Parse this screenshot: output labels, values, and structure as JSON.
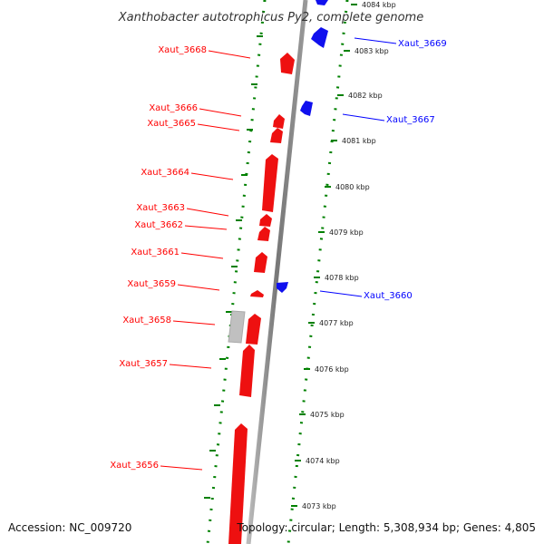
{
  "title": "Xanthobacter autotrophicus Py2, complete genome",
  "footer": {
    "accession": "Accession: NC_009720",
    "info": "Topology: circular; Length: 5,308,934 bp; Genes: 4,805"
  },
  "colors": {
    "forward": "#ff0000",
    "reverse": "#0000ff",
    "other": "#bbbbbb",
    "ticks": "#008000",
    "backbone": "#888888"
  },
  "ruler": {
    "unit": "kbp",
    "labels": [
      "4084 kbp",
      "4083 kbp",
      "4082 kbp",
      "4081 kbp",
      "4080 kbp",
      "4079 kbp",
      "4078 kbp",
      "4077 kbp",
      "4076 kbp",
      "4075 kbp",
      "4074 kbp",
      "4073 kbp"
    ]
  },
  "genes": [
    {
      "name": "Xaut_3668",
      "strand": "forward"
    },
    {
      "name": "Xaut_3669",
      "strand": "reverse"
    },
    {
      "name": "Xaut_3666",
      "strand": "forward"
    },
    {
      "name": "Xaut_3665",
      "strand": "forward"
    },
    {
      "name": "Xaut_3667",
      "strand": "reverse"
    },
    {
      "name": "Xaut_3664",
      "strand": "forward"
    },
    {
      "name": "Xaut_3663",
      "strand": "forward"
    },
    {
      "name": "Xaut_3662",
      "strand": "forward"
    },
    {
      "name": "Xaut_3661",
      "strand": "forward"
    },
    {
      "name": "Xaut_3659",
      "strand": "forward"
    },
    {
      "name": "Xaut_3660",
      "strand": "reverse"
    },
    {
      "name": "Xaut_3658",
      "strand": "forward"
    },
    {
      "name": "Xaut_3657",
      "strand": "forward"
    },
    {
      "name": "Xaut_3656",
      "strand": "forward"
    }
  ]
}
